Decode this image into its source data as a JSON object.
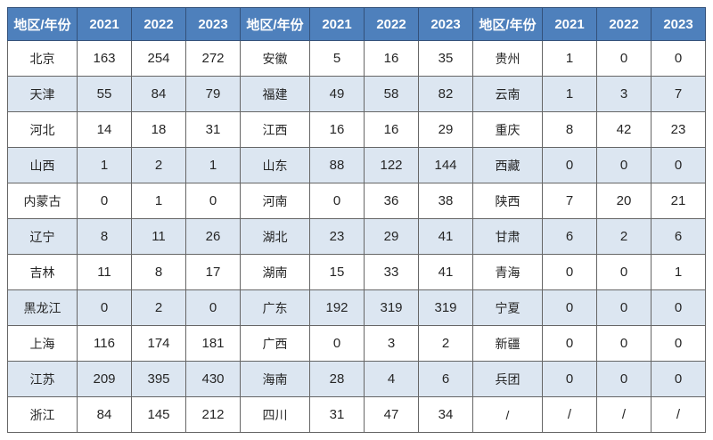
{
  "colors": {
    "header_bg": "#4E80BC",
    "header_text": "#FFFFFF",
    "band_bg": "#DCE6F1",
    "row_bg": "#FFFFFF",
    "border": "#666666",
    "text": "#262626"
  },
  "chart_data": {
    "type": "table",
    "header": [
      "地区/年份",
      "2021",
      "2022",
      "2023",
      "地区/年份",
      "2021",
      "2022",
      "2023",
      "地区/年份",
      "2021",
      "2022",
      "2023"
    ],
    "rows": [
      [
        "北京",
        "163",
        "254",
        "272",
        "安徽",
        "5",
        "16",
        "35",
        "贵州",
        "1",
        "0",
        "0"
      ],
      [
        "天津",
        "55",
        "84",
        "79",
        "福建",
        "49",
        "58",
        "82",
        "云南",
        "1",
        "3",
        "7"
      ],
      [
        "河北",
        "14",
        "18",
        "31",
        "江西",
        "16",
        "16",
        "29",
        "重庆",
        "8",
        "42",
        "23"
      ],
      [
        "山西",
        "1",
        "2",
        "1",
        "山东",
        "88",
        "122",
        "144",
        "西藏",
        "0",
        "0",
        "0"
      ],
      [
        "内蒙古",
        "0",
        "1",
        "0",
        "河南",
        "0",
        "36",
        "38",
        "陕西",
        "7",
        "20",
        "21"
      ],
      [
        "辽宁",
        "8",
        "11",
        "26",
        "湖北",
        "23",
        "29",
        "41",
        "甘肃",
        "6",
        "2",
        "6"
      ],
      [
        "吉林",
        "11",
        "8",
        "17",
        "湖南",
        "15",
        "33",
        "41",
        "青海",
        "0",
        "0",
        "1"
      ],
      [
        "黑龙江",
        "0",
        "2",
        "0",
        "广东",
        "192",
        "319",
        "319",
        "宁夏",
        "0",
        "0",
        "0"
      ],
      [
        "上海",
        "116",
        "174",
        "181",
        "广西",
        "0",
        "3",
        "2",
        "新疆",
        "0",
        "0",
        "0"
      ],
      [
        "江苏",
        "209",
        "395",
        "430",
        "海南",
        "28",
        "4",
        "6",
        "兵团",
        "0",
        "0",
        "0"
      ],
      [
        "浙江",
        "84",
        "145",
        "212",
        "四川",
        "31",
        "47",
        "34",
        "/",
        "/",
        "/",
        "/"
      ]
    ]
  }
}
